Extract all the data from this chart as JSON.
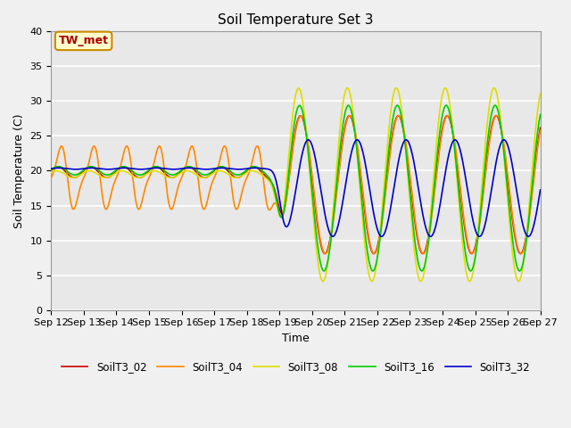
{
  "title": "Soil Temperature Set 3",
  "xlabel": "Time",
  "ylabel": "Soil Temperature (C)",
  "ylim": [
    0,
    40
  ],
  "annotation": "TW_met",
  "legend": [
    "SoilT3_02",
    "SoilT3_04",
    "SoilT3_08",
    "SoilT3_16",
    "SoilT3_32"
  ],
  "colors": [
    "#cc0000",
    "#ff8800",
    "#dddd00",
    "#00cc00",
    "#0000cc"
  ],
  "background_color": "#e8e8e8",
  "grid_color": "#ffffff",
  "x_tick_labels": [
    "Sep 12",
    "Sep 13",
    "Sep 14",
    "Sep 15",
    "Sep 16",
    "Sep 17",
    "Sep 18",
    "Sep 19",
    "Sep 20",
    "Sep 21",
    "Sep 22",
    "Sep 23",
    "Sep 24",
    "Sep 25",
    "Sep 26",
    "Sep 27"
  ],
  "x_tick_positions": [
    0,
    1,
    2,
    3,
    4,
    5,
    6,
    7,
    8,
    9,
    10,
    11,
    12,
    13,
    14,
    15
  ],
  "figsize": [
    6.4,
    4.8
  ],
  "dpi": 100
}
